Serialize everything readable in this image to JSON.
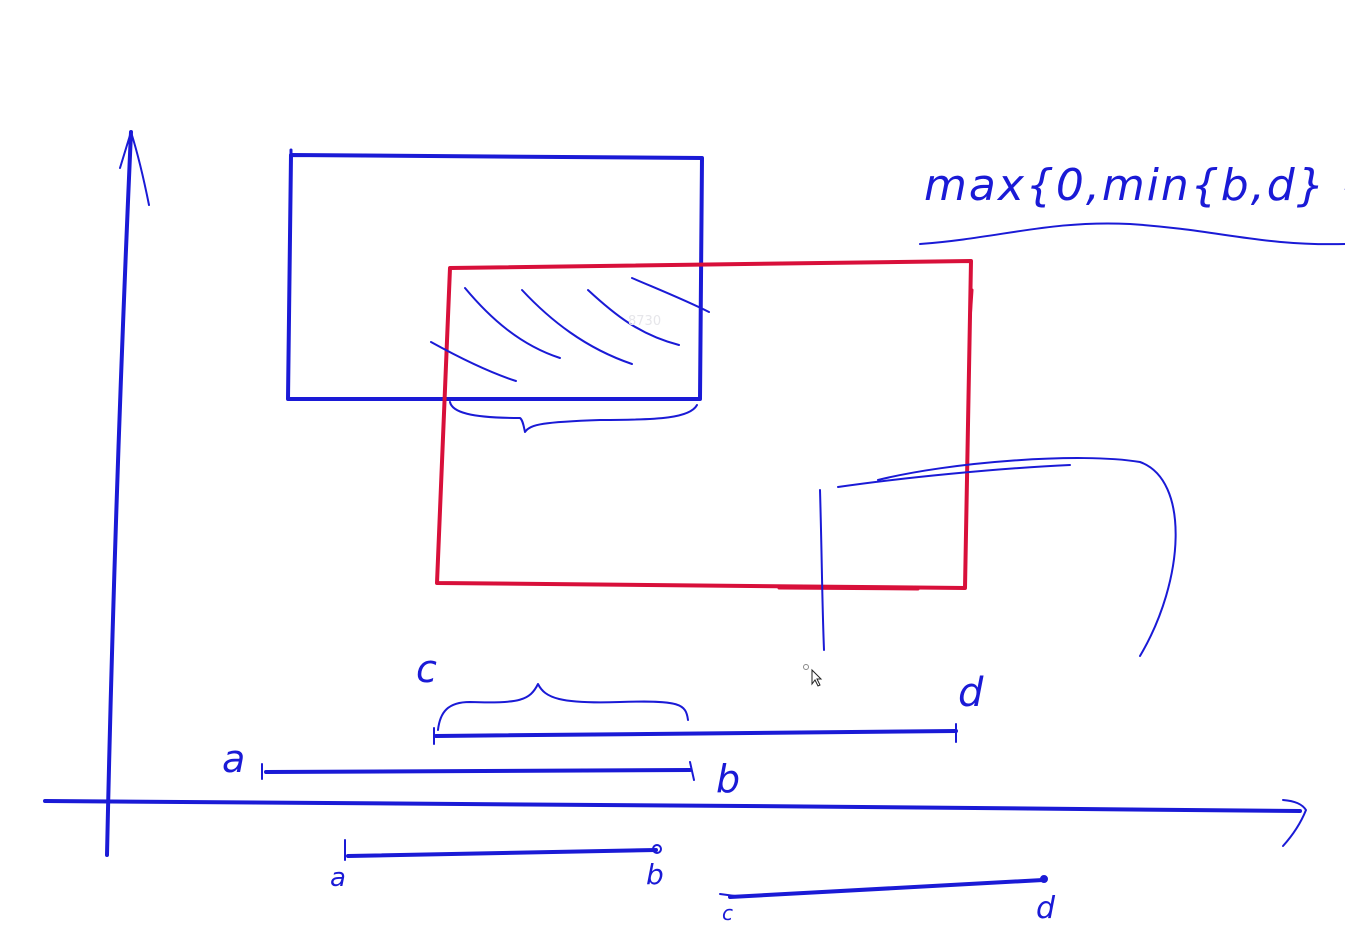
{
  "canvas": {
    "background": "#ffffff",
    "ink_colors": {
      "blue": "#1a1ad6",
      "red": "#d8103a"
    }
  },
  "formula": {
    "text": "max{0,min{b,d} -"
  },
  "labels": {
    "a_main": "a",
    "b_main": "b",
    "c_main": "c",
    "d_main": "d",
    "a_small": "a",
    "b_small": "b",
    "c_small": "c",
    "d_small": "d"
  },
  "watermark": {
    "text": "8730"
  },
  "cursor": {
    "icon": "arrow-cursor-icon"
  }
}
